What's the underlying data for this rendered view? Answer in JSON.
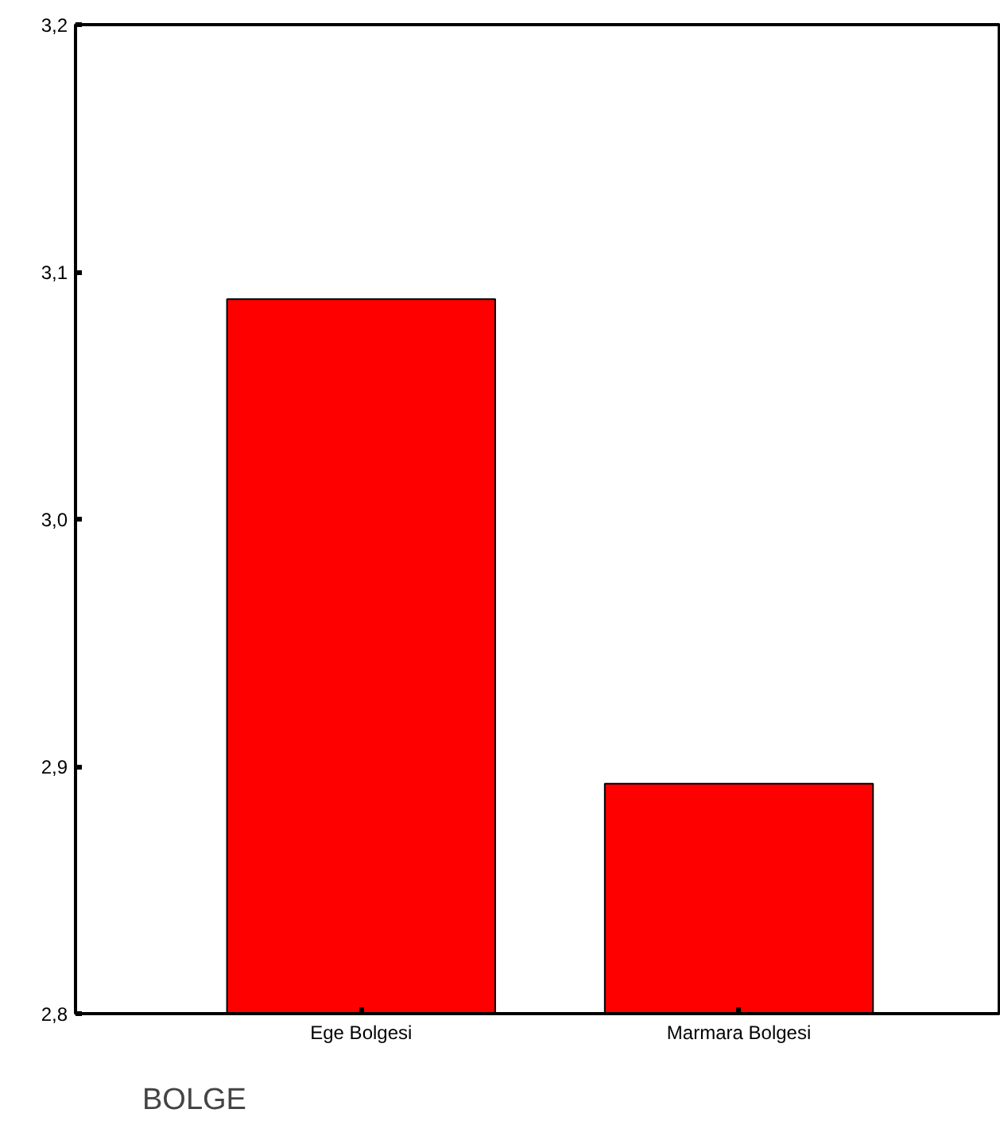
{
  "chart_data": {
    "type": "bar",
    "xlabel": "BOLGE",
    "categories": [
      "Ege Bolgesi",
      "Marmara Bolgesi"
    ],
    "values": [
      3.089,
      2.893
    ],
    "color": "#ff0000",
    "ylim": [
      2.8,
      3.2
    ],
    "yticks": [
      {
        "value": 2.8,
        "label": "2,8"
      },
      {
        "value": 2.9,
        "label": "2,9"
      },
      {
        "value": 3.0,
        "label": "3,0"
      },
      {
        "value": 3.1,
        "label": "3,1"
      },
      {
        "value": 3.2,
        "label": "3,2"
      }
    ],
    "grid": false
  }
}
